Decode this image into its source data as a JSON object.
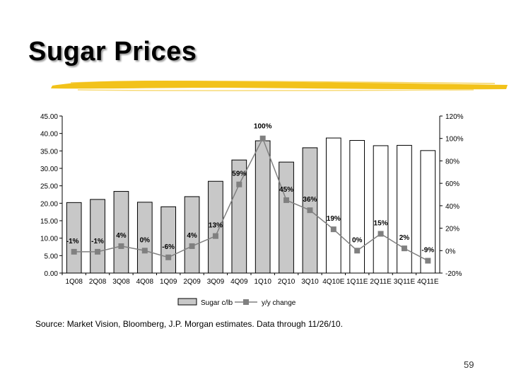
{
  "slide": {
    "title": "Sugar Prices",
    "source": "Source: Market Vision, Bloomberg, J.P. Morgan estimates. Data through 11/26/10.",
    "page_number": "59",
    "accent_color": "#f2c21a"
  },
  "chart_data": {
    "type": "bar",
    "categories": [
      "1Q08",
      "2Q08",
      "3Q08",
      "4Q08",
      "1Q09",
      "2Q09",
      "3Q09",
      "4Q09",
      "1Q10",
      "2Q10",
      "3Q10",
      "4Q10E",
      "1Q11E",
      "2Q11E",
      "3Q11E",
      "4Q11E"
    ],
    "series": [
      {
        "name": "Sugar c/lb",
        "type": "bar",
        "axis": "left",
        "values": [
          20.2,
          21.1,
          23.4,
          20.3,
          19.0,
          21.9,
          26.3,
          32.4,
          37.9,
          31.8,
          35.9,
          38.7,
          38.0,
          36.5,
          36.6,
          35.1
        ],
        "estimate_from_index": 11,
        "colors": {
          "fill": "#c8c8c8",
          "estimate_fill": "#ffffff",
          "stroke": "#000000"
        }
      },
      {
        "name": "y/y change",
        "type": "line",
        "axis": "right",
        "values": [
          -1,
          -1,
          4,
          0,
          -6,
          4,
          13,
          59,
          100,
          45,
          36,
          19,
          0,
          15,
          2,
          -9
        ],
        "labels": [
          "-1%",
          "-1%",
          "4%",
          "0%",
          "-6%",
          "4%",
          "13%",
          "59%",
          "100%",
          "45%",
          "36%",
          "19%",
          "0%",
          "15%",
          "2%",
          "-9%"
        ],
        "colors": {
          "line": "#808080",
          "marker": "#808080"
        }
      }
    ],
    "y_left": {
      "min": 0,
      "max": 45,
      "ticks": [
        "0.00",
        "5.00",
        "10.00",
        "15.00",
        "20.00",
        "25.00",
        "30.00",
        "35.00",
        "40.00",
        "45.00"
      ]
    },
    "y_right": {
      "min": -20,
      "max": 120,
      "ticks": [
        "-20%",
        "0%",
        "20%",
        "40%",
        "60%",
        "80%",
        "100%",
        "120%"
      ]
    },
    "legend": {
      "position": "bottom",
      "entries": [
        "Sugar c/lb",
        "y/y change"
      ]
    },
    "grid": false
  }
}
